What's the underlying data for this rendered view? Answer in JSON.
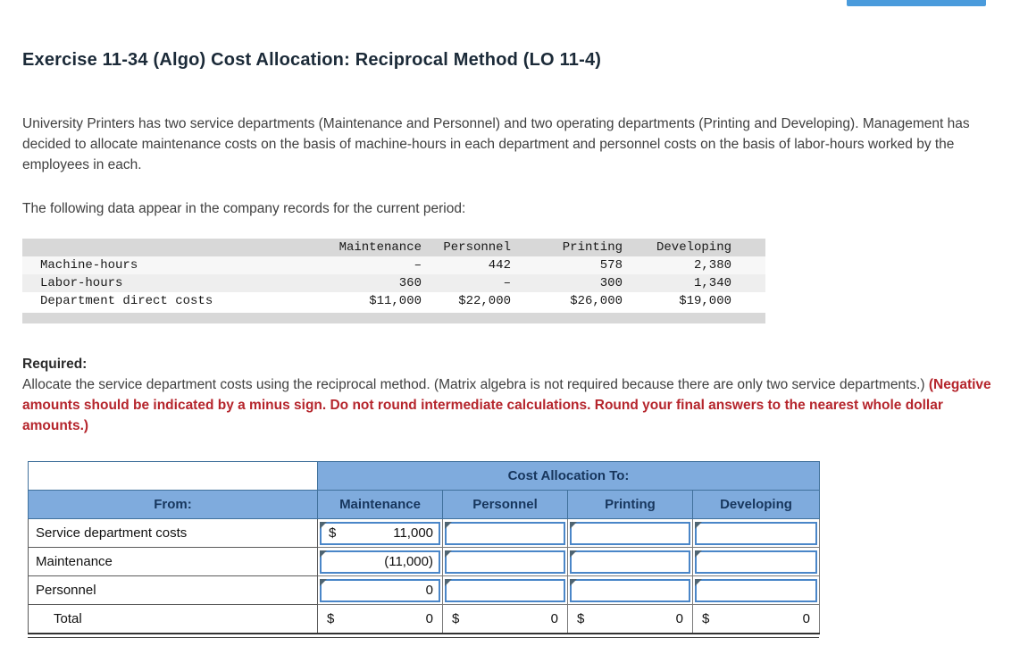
{
  "top_bar": {
    "partial_button_color": "#4a9bdc"
  },
  "exercise": {
    "title": "Exercise 11-34 (Algo) Cost Allocation: Reciprocal Method (LO 11-4)",
    "intro": "University Printers has two service departments (Maintenance and Personnel) and two operating departments (Printing and Developing). Management has decided to allocate maintenance costs on the basis of machine-hours in each department and personnel costs on the basis of labor-hours worked by the employees in each.",
    "records_line": "The following data appear in the company records for the current period:",
    "required_label": "Required:",
    "required_text": "Allocate the service department costs using the reciprocal method. (Matrix algebra is not required because there are only two service departments.) ",
    "required_emphasis": "(Negative amounts should be indicated by a minus sign. Do not round intermediate calculations. Round your final answers to the nearest whole dollar amounts.)"
  },
  "data_table": {
    "columns": [
      "Maintenance",
      "Personnel",
      "Printing",
      "Developing"
    ],
    "rows": [
      {
        "label": "Machine-hours",
        "values": [
          "–",
          "442",
          "578",
          "2,380"
        ]
      },
      {
        "label": "Labor-hours",
        "values": [
          "360",
          "–",
          "300",
          "1,340"
        ]
      },
      {
        "label": "Department direct costs",
        "values": [
          "$11,000",
          "$22,000",
          "$26,000",
          "$19,000"
        ]
      }
    ]
  },
  "allocation_table": {
    "top_header": "Cost Allocation To:",
    "from_header": "From:",
    "columns": [
      "Maintenance",
      "Personnel",
      "Printing",
      "Developing"
    ],
    "rows": [
      {
        "label": "Service department costs",
        "cells": [
          {
            "prefix": "$",
            "value": "11,000"
          },
          {
            "prefix": "",
            "value": ""
          },
          {
            "prefix": "",
            "value": ""
          },
          {
            "prefix": "",
            "value": ""
          }
        ]
      },
      {
        "label": "Maintenance",
        "cells": [
          {
            "prefix": "",
            "value": "(11,000)"
          },
          {
            "prefix": "",
            "value": ""
          },
          {
            "prefix": "",
            "value": ""
          },
          {
            "prefix": "",
            "value": ""
          }
        ]
      },
      {
        "label": "Personnel",
        "cells": [
          {
            "prefix": "",
            "value": "0"
          },
          {
            "prefix": "",
            "value": ""
          },
          {
            "prefix": "",
            "value": ""
          },
          {
            "prefix": "",
            "value": ""
          }
        ]
      }
    ],
    "total_row": {
      "label": "Total",
      "cells": [
        {
          "prefix": "$",
          "value": "0"
        },
        {
          "prefix": "$",
          "value": "0"
        },
        {
          "prefix": "$",
          "value": "0"
        },
        {
          "prefix": "$",
          "value": "0"
        }
      ]
    }
  },
  "colors": {
    "header_blue": "#7fabdd",
    "header_border_blue": "#41719c",
    "input_border_blue": "#4a86c8",
    "emphasis_red": "#b5252c",
    "table_gray": "#d8d8d8",
    "title_navy": "#1b2a38"
  }
}
